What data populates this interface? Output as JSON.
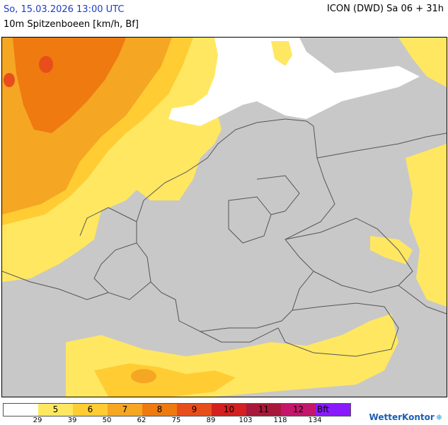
{
  "header": {
    "datetime": "So, 15.03.2026 13:00 UTC",
    "parameter": "10m Spitzenboeen [km/h, Bf]",
    "model_run": "ICON (DWD) Sa 06 + 31h"
  },
  "legend": {
    "bft": [
      {
        "label": "",
        "color": "#ffffff"
      },
      {
        "label": "5",
        "color": "#ffe761"
      },
      {
        "label": "6",
        "color": "#ffcc33"
      },
      {
        "label": "7",
        "color": "#f5a623"
      },
      {
        "label": "8",
        "color": "#ee7a10"
      },
      {
        "label": "9",
        "color": "#e84e1b"
      },
      {
        "label": "10",
        "color": "#d42020"
      },
      {
        "label": "11",
        "color": "#a8183a"
      },
      {
        "label": "12",
        "color": "#c4176b"
      },
      {
        "label": "Bft",
        "color": "#8a1aff"
      }
    ],
    "kmh": [
      "29",
      "39",
      "50",
      "62",
      "75",
      "89",
      "103",
      "118",
      "134"
    ]
  },
  "brand": {
    "name": "WetterKontor"
  },
  "colors": {
    "land": "#c8c8c8",
    "border": "#555555"
  }
}
